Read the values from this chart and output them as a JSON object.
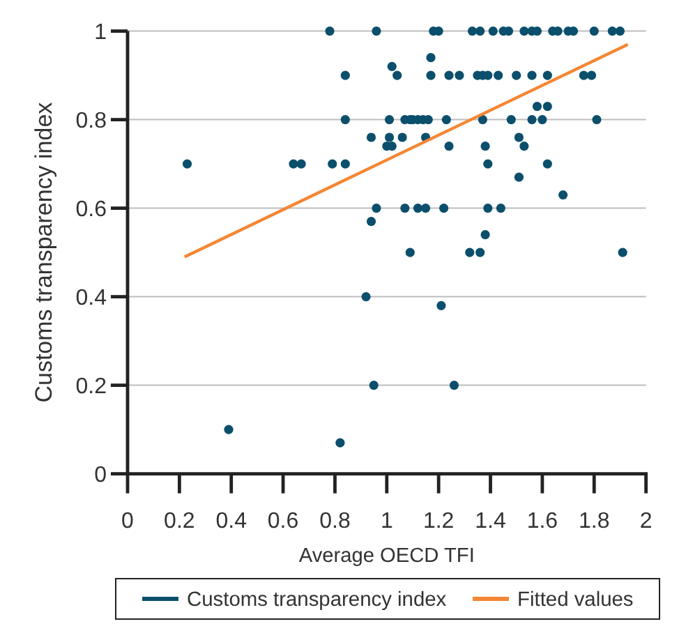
{
  "chart_data": {
    "type": "scatter",
    "xlabel": "Average OECD TFI",
    "ylabel": "Customs transparency index",
    "xlim": [
      0,
      2
    ],
    "ylim": [
      0,
      1
    ],
    "xticks": [
      0,
      0.2,
      0.4,
      0.6,
      0.8,
      1,
      1.2,
      1.4,
      1.6,
      1.8,
      2
    ],
    "yticks": [
      0,
      0.2,
      0.4,
      0.6,
      0.8,
      1
    ],
    "grid": "y",
    "legend": "bottom",
    "series": [
      {
        "name": "Customs transparency index",
        "color": "#0b4f6c",
        "marker": "circle",
        "x": [
          0.23,
          0.39,
          0.64,
          0.67,
          0.78,
          0.79,
          0.82,
          0.84,
          0.84,
          0.84,
          0.92,
          0.94,
          0.94,
          0.95,
          0.96,
          0.96,
          1.0,
          1.01,
          1.01,
          1.02,
          1.02,
          1.04,
          1.06,
          1.07,
          1.07,
          1.09,
          1.09,
          1.1,
          1.12,
          1.12,
          1.14,
          1.15,
          1.15,
          1.16,
          1.17,
          1.17,
          1.18,
          1.2,
          1.21,
          1.22,
          1.23,
          1.24,
          1.24,
          1.26,
          1.28,
          1.32,
          1.33,
          1.35,
          1.36,
          1.36,
          1.37,
          1.37,
          1.38,
          1.38,
          1.39,
          1.39,
          1.39,
          1.41,
          1.43,
          1.44,
          1.45,
          1.47,
          1.48,
          1.5,
          1.51,
          1.51,
          1.53,
          1.53,
          1.56,
          1.56,
          1.56,
          1.58,
          1.58,
          1.6,
          1.62,
          1.62,
          1.62,
          1.64,
          1.66,
          1.68,
          1.7,
          1.72,
          1.76,
          1.79,
          1.8,
          1.81,
          1.87,
          1.9,
          1.91
        ],
        "values": [
          0.7,
          0.1,
          0.7,
          0.7,
          1.0,
          0.7,
          0.07,
          0.9,
          0.8,
          0.7,
          0.4,
          0.76,
          0.57,
          0.2,
          1.0,
          0.6,
          0.74,
          0.8,
          0.76,
          0.92,
          0.74,
          0.9,
          0.76,
          0.8,
          0.6,
          0.8,
          0.5,
          0.8,
          0.8,
          0.6,
          0.8,
          0.76,
          0.6,
          0.8,
          0.94,
          0.9,
          1.0,
          1.0,
          0.38,
          0.6,
          0.8,
          0.74,
          0.9,
          0.2,
          0.9,
          0.5,
          1.0,
          0.9,
          1.0,
          0.5,
          0.8,
          0.9,
          0.74,
          0.54,
          0.7,
          0.9,
          0.6,
          1.0,
          0.9,
          0.6,
          1.0,
          1.0,
          0.8,
          0.9,
          0.76,
          0.67,
          1.0,
          0.74,
          0.8,
          1.0,
          0.9,
          1.0,
          0.83,
          0.8,
          0.9,
          0.83,
          0.7,
          1.0,
          1.0,
          0.63,
          1.0,
          1.0,
          0.9,
          0.9,
          1.0,
          0.8,
          1.0,
          1.0,
          0.5
        ]
      },
      {
        "name": "Fitted values",
        "type": "line",
        "color": "#f58634",
        "line_style": "solid",
        "x": [
          0.22,
          1.93
        ],
        "values": [
          0.49,
          0.97
        ]
      }
    ]
  }
}
